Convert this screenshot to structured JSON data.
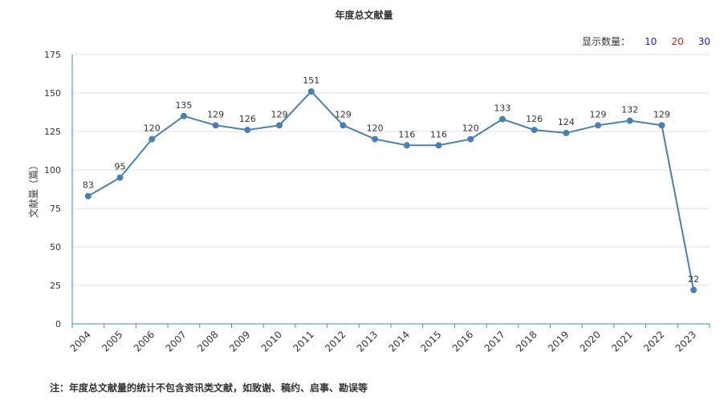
{
  "chart_data": {
    "type": "line",
    "title": "年度总文献量",
    "ylabel": "文献量（篇）",
    "xlabel": "",
    "ylim": [
      0,
      175
    ],
    "yticks": [
      0,
      25,
      50,
      75,
      100,
      125,
      150,
      175
    ],
    "grid": true,
    "categories": [
      "2004",
      "2005",
      "2006",
      "2007",
      "2008",
      "2009",
      "2010",
      "2011",
      "2012",
      "2013",
      "2014",
      "2015",
      "2016",
      "2017",
      "2018",
      "2019",
      "2020",
      "2021",
      "2022",
      "2023"
    ],
    "series": [
      {
        "values": [
          83,
          95,
          120,
          135,
          129,
          126,
          129,
          151,
          129,
          120,
          116,
          116,
          120,
          133,
          126,
          124,
          129,
          132,
          129,
          22
        ]
      }
    ],
    "line_color": "#4a7fae",
    "axis_color": "#3f8fb5"
  },
  "display_count": {
    "label": "显示数量：",
    "options": [
      {
        "text": "10",
        "color": "#1a1ad6"
      },
      {
        "text": "20",
        "color": "#d61a1a"
      },
      {
        "text": "30",
        "color": "#1a1ad6"
      }
    ]
  },
  "footnote": "注：年度总文献量的统计不包含资讯类文献，如致谢、稿约、启事、勘误等"
}
